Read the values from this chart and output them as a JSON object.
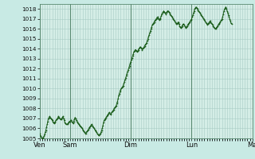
{
  "background_color": "#c8eae4",
  "plot_bg_color": "#d4ede6",
  "grid_color": "#a8ccc4",
  "line_color": "#1a5c1a",
  "marker_color": "#1a5c1a",
  "vline_color": "#5a8a72",
  "ylim": [
    1005,
    1018.5
  ],
  "yticks": [
    1005,
    1006,
    1007,
    1008,
    1009,
    1010,
    1011,
    1012,
    1013,
    1014,
    1015,
    1016,
    1017,
    1018
  ],
  "xtick_labels": [
    "Ven",
    "Sam",
    "Dim",
    "Lun",
    "Ma"
  ],
  "xtick_positions": [
    0,
    48,
    144,
    240,
    336
  ],
  "vline_positions": [
    0,
    48,
    144,
    240,
    336
  ],
  "pressure_data": [
    1005.5,
    1005.3,
    1005.2,
    1005.1,
    1005.0,
    1005.0,
    1005.1,
    1005.2,
    1005.4,
    1005.6,
    1005.8,
    1006.1,
    1006.4,
    1006.7,
    1007.0,
    1007.1,
    1007.2,
    1007.1,
    1007.0,
    1006.9,
    1006.8,
    1006.7,
    1006.6,
    1006.5,
    1006.6,
    1006.7,
    1006.8,
    1006.9,
    1007.0,
    1007.1,
    1007.2,
    1007.1,
    1007.0,
    1006.9,
    1006.9,
    1007.0,
    1007.1,
    1007.2,
    1007.0,
    1006.8,
    1006.6,
    1006.5,
    1006.4,
    1006.4,
    1006.4,
    1006.5,
    1006.6,
    1006.7,
    1006.7,
    1006.8,
    1006.8,
    1006.7,
    1006.6,
    1006.5,
    1006.7,
    1006.9,
    1007.1,
    1007.0,
    1006.8,
    1006.7,
    1006.6,
    1006.5,
    1006.4,
    1006.3,
    1006.3,
    1006.2,
    1006.1,
    1006.0,
    1005.9,
    1005.8,
    1005.7,
    1005.6,
    1005.5,
    1005.5,
    1005.6,
    1005.7,
    1005.8,
    1005.9,
    1006.0,
    1006.1,
    1006.2,
    1006.3,
    1006.4,
    1006.3,
    1006.2,
    1006.1,
    1006.0,
    1005.9,
    1005.8,
    1005.7,
    1005.6,
    1005.5,
    1005.4,
    1005.3,
    1005.3,
    1005.4,
    1005.5,
    1005.6,
    1005.8,
    1006.0,
    1006.3,
    1006.6,
    1006.8,
    1006.9,
    1007.0,
    1007.1,
    1007.2,
    1007.3,
    1007.4,
    1007.5,
    1007.6,
    1007.5,
    1007.4,
    1007.5,
    1007.6,
    1007.7,
    1007.8,
    1007.9,
    1008.0,
    1008.1,
    1008.2,
    1008.3,
    1008.5,
    1008.7,
    1009.0,
    1009.3,
    1009.5,
    1009.7,
    1009.9,
    1010.0,
    1010.1,
    1010.2,
    1010.3,
    1010.5,
    1010.7,
    1010.9,
    1011.1,
    1011.3,
    1011.5,
    1011.7,
    1011.9,
    1012.1,
    1012.3,
    1012.5,
    1012.7,
    1012.9,
    1013.1,
    1013.3,
    1013.5,
    1013.7,
    1013.8,
    1013.9,
    1013.9,
    1013.8,
    1013.7,
    1013.8,
    1013.9,
    1014.0,
    1014.1,
    1014.2,
    1014.1,
    1014.0,
    1013.9,
    1014.0,
    1014.1,
    1014.2,
    1014.3,
    1014.4,
    1014.5,
    1014.6,
    1014.8,
    1015.0,
    1015.2,
    1015.4,
    1015.6,
    1015.8,
    1016.0,
    1016.2,
    1016.4,
    1016.5,
    1016.6,
    1016.7,
    1016.8,
    1016.9,
    1017.0,
    1017.1,
    1017.2,
    1017.1,
    1017.0,
    1016.9,
    1017.0,
    1017.1,
    1017.3,
    1017.5,
    1017.6,
    1017.7,
    1017.8,
    1017.7,
    1017.6,
    1017.5,
    1017.6,
    1017.7,
    1017.8,
    1017.8,
    1017.7,
    1017.6,
    1017.5,
    1017.4,
    1017.3,
    1017.2,
    1017.1,
    1017.0,
    1016.9,
    1016.8,
    1016.7,
    1016.6,
    1016.5,
    1016.5,
    1016.6,
    1016.7,
    1016.5,
    1016.3,
    1016.2,
    1016.1,
    1016.2,
    1016.3,
    1016.4,
    1016.5,
    1016.4,
    1016.3,
    1016.2,
    1016.1,
    1016.2,
    1016.3,
    1016.4,
    1016.5,
    1016.6,
    1016.7,
    1016.8,
    1016.9,
    1017.0,
    1017.2,
    1017.4,
    1017.6,
    1017.8,
    1018.0,
    1018.1,
    1018.2,
    1018.1,
    1018.0,
    1017.9,
    1017.8,
    1017.7,
    1017.6,
    1017.5,
    1017.4,
    1017.3,
    1017.2,
    1017.1,
    1017.0,
    1016.9,
    1016.8,
    1016.7,
    1016.6,
    1016.5,
    1016.4,
    1016.5,
    1016.6,
    1016.7,
    1016.8,
    1016.7,
    1016.6,
    1016.5,
    1016.4,
    1016.3,
    1016.2,
    1016.1,
    1016.0,
    1016.0,
    1016.1,
    1016.2,
    1016.3,
    1016.4,
    1016.5,
    1016.6,
    1016.7,
    1016.8,
    1016.9,
    1017.0,
    1017.2,
    1017.5,
    1017.8,
    1018.0,
    1018.1,
    1018.2,
    1018.0,
    1017.8,
    1017.6,
    1017.4,
    1017.2,
    1017.0,
    1016.8,
    1016.6,
    1016.5
  ]
}
